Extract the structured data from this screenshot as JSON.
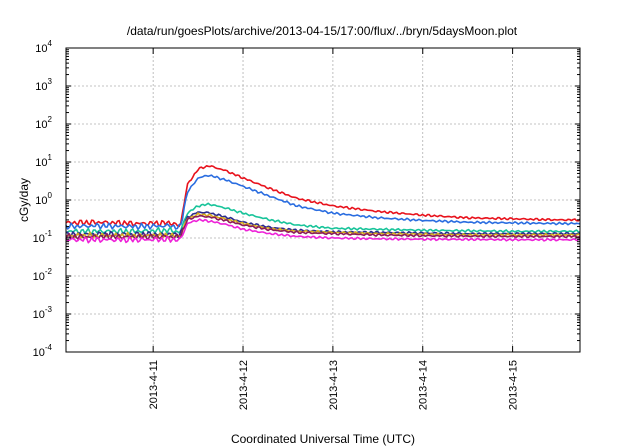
{
  "chart_data": {
    "type": "line",
    "title": "/data/run/goesPlots/archive/2013-04-15/17:00/flux/../bryn/5daysMoon.plot",
    "xlabel": "Coordinated Universal Time (UTC)",
    "ylabel": "cGy/day",
    "yscale": "log",
    "ylim": [
      0.0001,
      10000
    ],
    "xlim": [
      -0.97,
      4.75
    ],
    "x_unit": "days since 2013-4-11 00:00 UTC",
    "yticks": [
      {
        "base": "10",
        "exp": "-4",
        "value": 0.0001
      },
      {
        "base": "10",
        "exp": "-3",
        "value": 0.001
      },
      {
        "base": "10",
        "exp": "-2",
        "value": 0.01
      },
      {
        "base": "10",
        "exp": "-1",
        "value": 0.1
      },
      {
        "base": "10",
        "exp": "0",
        "value": 1
      },
      {
        "base": "10",
        "exp": "1",
        "value": 10
      },
      {
        "base": "10",
        "exp": "2",
        "value": 100
      },
      {
        "base": "10",
        "exp": "3",
        "value": 1000
      },
      {
        "base": "10",
        "exp": "4",
        "value": 10000
      }
    ],
    "xticks": [
      {
        "label": "2013-4-11",
        "value": 0
      },
      {
        "label": "2013-4-12",
        "value": 1
      },
      {
        "label": "2013-4-13",
        "value": 2
      },
      {
        "label": "2013-4-14",
        "value": 3
      },
      {
        "label": "2013-4-15",
        "value": 4
      }
    ],
    "grid": true,
    "legend": "none",
    "x": [
      -0.97,
      -0.6,
      -0.2,
      0.2,
      0.3,
      0.38,
      0.5,
      0.62,
      0.8,
      1.0,
      1.3,
      1.6,
      2.0,
      2.5,
      3.0,
      3.5,
      4.0,
      4.5,
      4.75
    ],
    "series": [
      {
        "color": "#e8121c",
        "values": [
          0.25,
          0.26,
          0.24,
          0.25,
          0.2,
          2.5,
          6.5,
          8.0,
          6.0,
          3.8,
          2.0,
          1.1,
          0.7,
          0.5,
          0.4,
          0.34,
          0.32,
          0.3,
          0.3
        ]
      },
      {
        "color": "#2a6de0",
        "values": [
          0.2,
          0.21,
          0.2,
          0.21,
          0.18,
          1.6,
          3.8,
          4.5,
          3.4,
          2.3,
          1.25,
          0.7,
          0.45,
          0.34,
          0.29,
          0.26,
          0.25,
          0.24,
          0.24
        ]
      },
      {
        "color": "#18c49a",
        "values": [
          0.15,
          0.15,
          0.15,
          0.16,
          0.14,
          0.45,
          0.7,
          0.78,
          0.62,
          0.45,
          0.3,
          0.22,
          0.18,
          0.17,
          0.16,
          0.155,
          0.15,
          0.15,
          0.15
        ]
      },
      {
        "color": "#2a2a90",
        "values": [
          0.125,
          0.125,
          0.125,
          0.125,
          0.12,
          0.35,
          0.48,
          0.46,
          0.36,
          0.26,
          0.19,
          0.16,
          0.145,
          0.14,
          0.135,
          0.13,
          0.13,
          0.13,
          0.13
        ]
      },
      {
        "color": "#d6ac1c",
        "values": [
          0.115,
          0.115,
          0.115,
          0.115,
          0.11,
          0.32,
          0.42,
          0.4,
          0.32,
          0.24,
          0.175,
          0.15,
          0.14,
          0.13,
          0.125,
          0.12,
          0.12,
          0.12,
          0.12
        ]
      },
      {
        "color": "#8a1c5a",
        "values": [
          0.108,
          0.108,
          0.108,
          0.108,
          0.105,
          0.3,
          0.38,
          0.36,
          0.29,
          0.22,
          0.165,
          0.14,
          0.13,
          0.12,
          0.115,
          0.112,
          0.11,
          0.11,
          0.11
        ]
      },
      {
        "color": "#ee22d8",
        "values": [
          0.09,
          0.09,
          0.09,
          0.092,
          0.088,
          0.24,
          0.3,
          0.28,
          0.23,
          0.17,
          0.13,
          0.11,
          0.1,
          0.095,
          0.093,
          0.092,
          0.09,
          0.09,
          0.09
        ]
      }
    ]
  }
}
